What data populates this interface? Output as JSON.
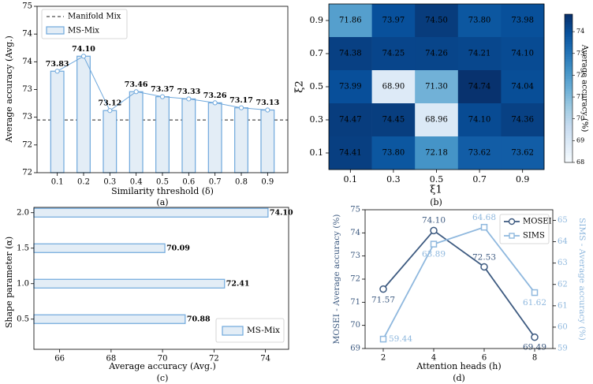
{
  "chart_data": [
    {
      "panel_label": "(a)",
      "type": "bar",
      "xlabel": "Similarity threshold (δ)",
      "ylabel": "Average accuracy (Avg.)",
      "categories": [
        "0.1",
        "0.2",
        "0.3",
        "0.4",
        "0.5",
        "0.6",
        "0.7",
        "0.8",
        "0.9"
      ],
      "values": [
        73.83,
        74.1,
        73.12,
        73.46,
        73.37,
        73.33,
        73.26,
        73.17,
        73.13
      ],
      "data_labels": [
        "73.83",
        "74.10",
        "73.12",
        "73.46",
        "73.37",
        "73.33",
        "73.26",
        "73.17",
        "73.13"
      ],
      "ylim": [
        72,
        75
      ],
      "yticks": [
        72,
        72.5,
        73,
        73.5,
        74,
        74.5,
        75
      ],
      "ytick_labels": [
        "72",
        "72",
        "73",
        "73",
        "74",
        "74",
        "75"
      ],
      "baseline": {
        "name": "Manifold Mix",
        "value": 72.95
      },
      "series_name": "MS-Mix",
      "legend": [
        "Manifold Mix",
        "MS-Mix"
      ],
      "legend_position": "top-left",
      "bar_color": "#e3edf6",
      "edge_color": "#6fa8dc",
      "line_color": "#6fa8dc",
      "baseline_color": "#222222"
    },
    {
      "panel_label": "(b)",
      "type": "heatmap",
      "xlabel": "ξ1",
      "ylabel": "ξ2",
      "x_categories": [
        "0.1",
        "0.3",
        "0.5",
        "0.7",
        "0.9"
      ],
      "y_categories": [
        "0.9",
        "0.7",
        "0.5",
        "0.3",
        "0.1"
      ],
      "values": [
        [
          "71.86",
          "73.97",
          "74.50",
          "73.80",
          "73.98"
        ],
        [
          "74.38",
          "74.25",
          "74.26",
          "74.21",
          "74.10"
        ],
        [
          "73.99",
          "68.90",
          "71.30",
          "74.74",
          "74.04"
        ],
        [
          "74.47",
          "74.45",
          "68.96",
          "74.10",
          "74.36"
        ],
        [
          "74.41",
          "73.80",
          "72.18",
          "73.62",
          "73.62"
        ]
      ],
      "colorbar_label": "Average accuracy (%)",
      "colorbar_range": [
        68,
        74.8
      ],
      "colorbar_ticks": [
        "68",
        "69",
        "70",
        "71",
        "72",
        "73",
        "74"
      ],
      "colormap": "Blues"
    },
    {
      "panel_label": "(c)",
      "type": "bar",
      "orientation": "horizontal",
      "xlabel": "Average accuracy (Avg.)",
      "ylabel": "Shape parameter (α)",
      "categories": [
        "2.0",
        "1.5",
        "1.0",
        "0.5"
      ],
      "values": [
        74.1,
        70.09,
        72.41,
        70.88
      ],
      "data_labels": [
        "74.10",
        "70.09",
        "72.41",
        "70.88"
      ],
      "xlim": [
        65,
        74.9
      ],
      "xticks": [
        "66",
        "68",
        "70",
        "72",
        "74"
      ],
      "series_name": "MS-Mix",
      "legend": [
        "MS-Mix"
      ],
      "legend_position": "bottom-right",
      "bar_color": "#e3edf6",
      "edge_color": "#6fa8dc"
    },
    {
      "panel_label": "(d)",
      "type": "line",
      "xlabel": "Attention heads (h)",
      "x": [
        "2",
        "4",
        "6",
        "8"
      ],
      "series": [
        {
          "name": "MOSEI",
          "axis": "left",
          "values": [
            71.57,
            74.1,
            72.53,
            69.49
          ],
          "data_labels": [
            "71.57",
            "74.10",
            "72.53",
            "69.49"
          ],
          "color": "#3d5a80",
          "marker": "circle"
        },
        {
          "name": "SIMS",
          "axis": "right",
          "values": [
            59.44,
            63.89,
            64.68,
            61.62
          ],
          "data_labels": [
            "59.44",
            "63.89",
            "64.68",
            "61.62"
          ],
          "color": "#8fb8de",
          "marker": "square"
        }
      ],
      "ylabel_left": "MOSEI - Average accuracy (%)",
      "ylabel_right": "SIMS - Average accuracy (%)",
      "ylim_left": [
        69,
        75
      ],
      "yticks_left": [
        "69",
        "70",
        "71",
        "72",
        "73",
        "74",
        "75"
      ],
      "ylim_right": [
        59,
        65.5
      ],
      "yticks_right": [
        "59",
        "60",
        "61",
        "62",
        "63",
        "64",
        "65"
      ],
      "legend": [
        "MOSEI",
        "SIMS"
      ],
      "legend_position": "top-right"
    }
  ]
}
